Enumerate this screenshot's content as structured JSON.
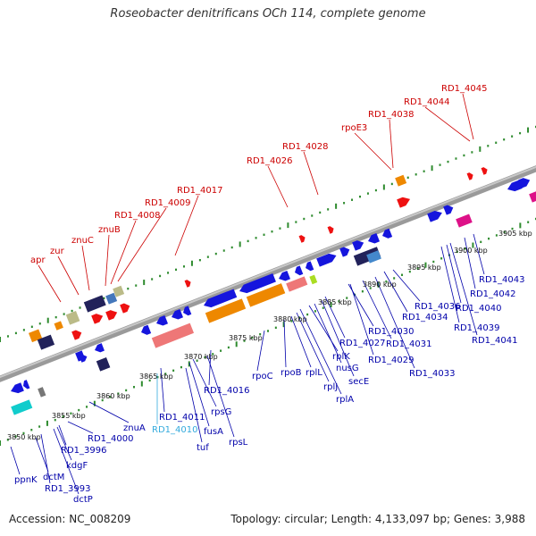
{
  "title": "Roseobacter denitrificans OCh 114, complete genome",
  "footer": {
    "accession": "Accession: NC_008209",
    "summary": "Topology: circular; Length: 4,133,097 bp; Genes: 3,988"
  },
  "colors": {
    "backbone": "#7a7a7a",
    "tick_green": "#2e8b2e",
    "label_red": "#cc0000",
    "label_blue": "#0000aa",
    "label_cyan": "#33aadd",
    "gene_blue": "#1515dd",
    "gene_red": "#ee1111",
    "gene_orange": "#ee8800",
    "gene_navy": "#22225a",
    "gene_pink": "#ee7777",
    "gene_magenta": "#dd1188",
    "gene_teal": "#11cccc",
    "gene_tan": "#bbbb88"
  },
  "kbp_labels": [
    "3850 kbp",
    "3855 kbp",
    "3860 kbp",
    "3865 kbp",
    "3870 kbp",
    "3875 kbp",
    "3880 kbp",
    "3885 kbp",
    "3890 kbp",
    "3895 kbp",
    "3900 kbp",
    "3905 kbp"
  ],
  "top_labels": [
    "apr",
    "zur",
    "znuC",
    "znuB",
    "RD1_4008",
    "RD1_4009",
    "RD1_4017",
    "RD1_4026",
    "RD1_4028",
    "rpoE3",
    "RD1_4038",
    "RD1_4044",
    "RD1_4045"
  ],
  "bottom_labels": [
    "ppnK",
    "dctM",
    "RD1_3993",
    "dctP",
    "kdgF",
    "RD1_3996",
    "RD1_4000",
    "znuA",
    "RD1_4011",
    "RD1_4010",
    "tuf",
    "fusA",
    "rpsG",
    "rpsL",
    "RD1_4016",
    "rpoC",
    "rpoB",
    "rplL",
    "rplJ",
    "rplA",
    "rplK",
    "nusG",
    "secE",
    "RD1_4027",
    "RD1_4030",
    "RD1_4029",
    "RD1_4031",
    "RD1_4033",
    "RD1_4034",
    "RD1_4036",
    "RD1_4039",
    "RD1_4040",
    "RD1_4041",
    "RD1_4042",
    "RD1_4043"
  ]
}
